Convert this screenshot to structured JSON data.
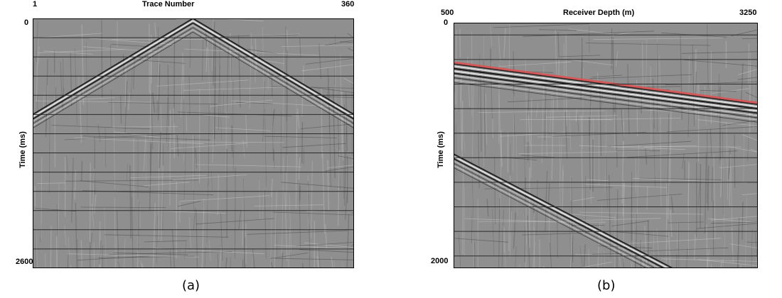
{
  "chart_data": [
    {
      "type": "heatmap",
      "panel_label": "(a)",
      "title": "",
      "xlabel": "Trace Number",
      "ylabel": "Time (ms)",
      "xlim": [
        1,
        360
      ],
      "ylim": [
        0,
        2600
      ],
      "x_tick_labels": [
        "1",
        "360"
      ],
      "y_tick_labels": [
        "0",
        "2600"
      ],
      "grid": true,
      "colormap": "grayscale seismic wiggle/variable density",
      "background_color": "#8f8f8f",
      "grid_color": "#2b2b2b",
      "events": [
        {
          "name": "first-break-left",
          "points": [
            [
              1,
              1000
            ],
            [
              180,
              0
            ]
          ]
        },
        {
          "name": "first-break-right",
          "points": [
            [
              180,
              0
            ],
            [
              360,
              1000
            ]
          ]
        }
      ]
    },
    {
      "type": "heatmap",
      "panel_label": "(b)",
      "title": "",
      "xlabel": "Receiver Depth (m)",
      "ylabel": "Time (ms)",
      "xlim": [
        500,
        3250
      ],
      "ylim": [
        0,
        2000
      ],
      "x_tick_labels": [
        "500",
        "3250"
      ],
      "y_tick_labels": [
        "0",
        "2000"
      ],
      "grid": true,
      "colormap": "grayscale seismic wiggle/variable density",
      "background_color": "#8f8f8f",
      "grid_color": "#2b2b2b",
      "highlight_color": "#e05050",
      "events": [
        {
          "name": "first-break-pick",
          "points": [
            [
              500,
              335
            ],
            [
              3250,
              665
            ]
          ]
        },
        {
          "name": "downgoing-wave",
          "points": [
            [
              500,
              375
            ],
            [
              3250,
              700
            ]
          ]
        },
        {
          "name": "tube-wave",
          "points": [
            [
              500,
              1070
            ],
            [
              2480,
              2000
            ]
          ]
        }
      ]
    }
  ]
}
